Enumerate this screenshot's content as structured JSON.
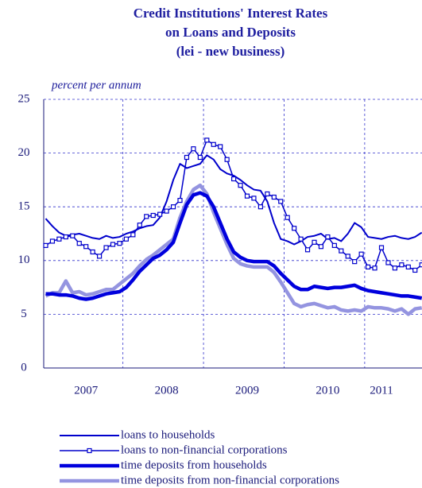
{
  "chart_data": {
    "type": "line",
    "title": [
      "Credit Institutions' Interest Rates",
      "on Loans and Deposits",
      "(lei - new business)"
    ],
    "y_label": "percent per annum",
    "categories": [
      null,
      null,
      null,
      null,
      null,
      null,
      "2007",
      null,
      null,
      null,
      null,
      null,
      null,
      null,
      null,
      null,
      null,
      null,
      "2008",
      null,
      null,
      null,
      null,
      null,
      null,
      null,
      null,
      null,
      null,
      null,
      "2009",
      null,
      null,
      null,
      null,
      null,
      null,
      null,
      null,
      null,
      null,
      null,
      "2010",
      null,
      null,
      null,
      null,
      null,
      null,
      null,
      "2011",
      null,
      null,
      null,
      null,
      null,
      null
    ],
    "ylim": [
      0,
      25
    ],
    "yticks": [
      0,
      5,
      10,
      15,
      20,
      25
    ],
    "grid": true,
    "series": [
      {
        "name": "loans to households",
        "color": "#0000cc",
        "width": 2,
        "marker": false,
        "values": [
          13.9,
          13.2,
          12.6,
          12.3,
          12.4,
          12.5,
          12.3,
          12.1,
          12.0,
          12.3,
          12.1,
          12.2,
          12.5,
          12.7,
          13.0,
          13.2,
          13.3,
          14.0,
          15.5,
          17.5,
          19.0,
          18.6,
          18.8,
          19.0,
          19.8,
          19.4,
          18.5,
          18.1,
          17.9,
          17.5,
          17.0,
          16.6,
          16.5,
          15.5,
          13.5,
          12.0,
          11.8,
          11.5,
          11.8,
          12.2,
          12.3,
          12.5,
          12.0,
          12.1,
          11.8,
          12.5,
          13.5,
          13.1,
          12.2,
          12.1,
          12.0,
          12.2,
          12.3,
          12.1,
          12.0,
          12.2,
          12.6
        ]
      },
      {
        "name": "loans to non-financial corporations",
        "color": "#0000cc",
        "width": 1.5,
        "marker": true,
        "values": [
          11.4,
          11.8,
          12.0,
          12.2,
          12.3,
          11.6,
          11.3,
          10.8,
          10.4,
          11.2,
          11.5,
          11.6,
          12.0,
          12.4,
          13.3,
          14.1,
          14.2,
          14.3,
          14.6,
          15.0,
          15.6,
          19.6,
          20.4,
          19.6,
          21.2,
          20.8,
          20.6,
          19.4,
          17.6,
          17.0,
          16.0,
          15.8,
          15.0,
          16.2,
          15.9,
          15.5,
          14.0,
          13.0,
          12.0,
          11.0,
          11.7,
          11.3,
          12.2,
          11.4,
          10.9,
          10.4,
          9.9,
          10.6,
          9.4,
          9.3,
          11.2,
          9.8,
          9.3,
          9.6,
          9.4,
          9.1,
          9.6
        ]
      },
      {
        "name": "time deposits from households",
        "color": "#0000dd",
        "width": 4.5,
        "marker": false,
        "values": [
          6.9,
          6.9,
          6.8,
          6.8,
          6.7,
          6.5,
          6.4,
          6.5,
          6.7,
          6.9,
          7.0,
          7.1,
          7.5,
          8.2,
          9.0,
          9.6,
          10.2,
          10.5,
          11.0,
          11.7,
          13.5,
          15.2,
          16.1,
          16.3,
          16.0,
          15.0,
          13.5,
          12.0,
          10.8,
          10.3,
          10.0,
          9.9,
          9.9,
          9.9,
          9.5,
          8.8,
          8.2,
          7.6,
          7.3,
          7.3,
          7.6,
          7.5,
          7.4,
          7.5,
          7.5,
          7.6,
          7.7,
          7.4,
          7.2,
          7.1,
          7.0,
          6.9,
          6.8,
          6.7,
          6.7,
          6.6,
          6.5
        ]
      },
      {
        "name": "time deposits from non-financial corporations",
        "color": "#9494e0",
        "width": 4.5,
        "marker": false,
        "values": [
          6.7,
          7.0,
          7.0,
          8.1,
          7.0,
          7.1,
          6.8,
          6.9,
          7.1,
          7.3,
          7.3,
          7.8,
          8.3,
          8.8,
          9.5,
          10.1,
          10.5,
          11.0,
          11.5,
          12.0,
          14.0,
          15.5,
          16.6,
          17.0,
          16.2,
          14.5,
          13.0,
          11.5,
          10.2,
          9.7,
          9.5,
          9.4,
          9.4,
          9.4,
          8.9,
          8.0,
          7.0,
          6.0,
          5.7,
          5.9,
          6.0,
          5.8,
          5.6,
          5.7,
          5.4,
          5.3,
          5.4,
          5.3,
          5.7,
          5.6,
          5.6,
          5.5,
          5.3,
          5.5,
          5.0,
          5.5,
          5.6
        ]
      }
    ]
  }
}
